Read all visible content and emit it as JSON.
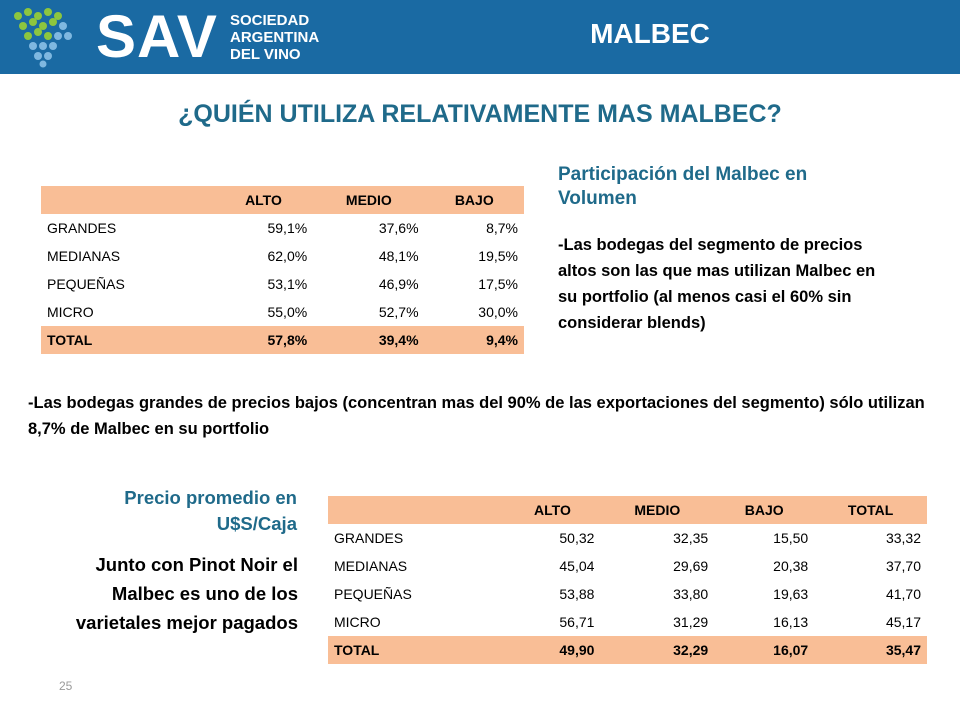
{
  "header": {
    "logo_text": "SAV",
    "logo_subtitle": [
      "SOCIEDAD",
      "ARGENTINA",
      "DEL VINO"
    ],
    "slide_title": "MALBEC",
    "bg_color": "#1a6aa3"
  },
  "question": "¿QUIÉN UTILIZA RELATIVAMENTE MAS MALBEC?",
  "table_volume": {
    "headers": [
      "",
      "ALTO",
      "MEDIO",
      "BAJO"
    ],
    "rows": [
      [
        "GRANDES",
        "59,1%",
        "37,6%",
        "8,7%"
      ],
      [
        "MEDIANAS",
        "62,0%",
        "48,1%",
        "19,5%"
      ],
      [
        "PEQUEÑAS",
        "53,1%",
        "46,9%",
        "17,5%"
      ],
      [
        "MICRO",
        "55,0%",
        "52,7%",
        "30,0%"
      ]
    ],
    "total": [
      "TOTAL",
      "57,8%",
      "39,4%",
      "9,4%"
    ]
  },
  "volume_panel": {
    "heading": "Participación del Malbec en Volumen",
    "text": "-Las bodegas del segmento de precios altos son las que mas utilizan Malbec en su portfolio (al menos casi el 60% sin considerar blends)"
  },
  "wide_note": "-Las bodegas grandes de precios bajos (concentran mas del 90% de las exportaciones del segmento) sólo utilizan 8,7% de Malbec en su portfolio",
  "price_panel": {
    "heading": "Precio promedio en U$S/Caja",
    "text": "Junto con Pinot Noir el Malbec es uno de los varietales mejor pagados"
  },
  "table_price": {
    "headers": [
      "",
      "ALTO",
      "MEDIO",
      "BAJO",
      "TOTAL"
    ],
    "rows": [
      [
        "GRANDES",
        "50,32",
        "32,35",
        "15,50",
        "33,32"
      ],
      [
        "MEDIANAS",
        "45,04",
        "29,69",
        "20,38",
        "37,70"
      ],
      [
        "PEQUEÑAS",
        "53,88",
        "33,80",
        "19,63",
        "41,70"
      ],
      [
        "MICRO",
        "56,71",
        "31,29",
        "16,13",
        "45,17"
      ]
    ],
    "total": [
      "TOTAL",
      "49,90",
      "32,29",
      "16,07",
      "35,47"
    ]
  },
  "page_number": "25",
  "colors": {
    "accent_teal": "#1f6a8a",
    "table_highlight": "#f9be96",
    "logo_green": "#8cc63f",
    "logo_light_blue": "#7fb8e0"
  }
}
